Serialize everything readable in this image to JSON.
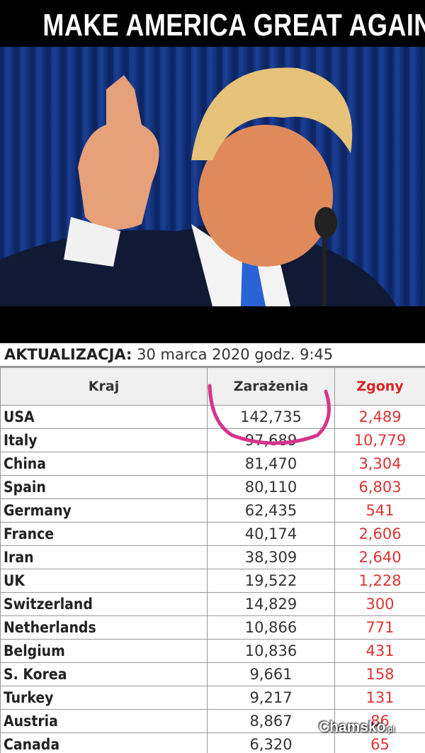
{
  "header": {
    "title": "MAKE AMERICA GREAT AGAIN"
  },
  "table": {
    "update_label": "AKTUALIZACJA:",
    "update_date": "30 marca 2020 godz. 9:45",
    "columns": [
      "Kraj",
      "Zarażenia",
      "Zgony"
    ],
    "rows": [
      [
        "USA",
        "142,735",
        "2,489"
      ],
      [
        "Italy",
        "97,689",
        "10,779"
      ],
      [
        "China",
        "81,470",
        "3,304"
      ],
      [
        "Spain",
        "80,110",
        "6,803"
      ],
      [
        "Germany",
        "62,435",
        "541"
      ],
      [
        "France",
        "40,174",
        "2,606"
      ],
      [
        "Iran",
        "38,309",
        "2,640"
      ],
      [
        "UK",
        "19,522",
        "1,228"
      ],
      [
        "Switzerland",
        "14,829",
        "300"
      ],
      [
        "Netherlands",
        "10,866",
        "771"
      ],
      [
        "Belgium",
        "10,836",
        "431"
      ],
      [
        "S. Korea",
        "9,661",
        "158"
      ],
      [
        "Turkey",
        "9,217",
        "131"
      ],
      [
        "Austria",
        "8,867",
        "86"
      ],
      [
        "Canada",
        "6,320",
        "65"
      ]
    ]
  },
  "watermark": {
    "name": "Chamsko",
    "suffix": ".pl"
  }
}
